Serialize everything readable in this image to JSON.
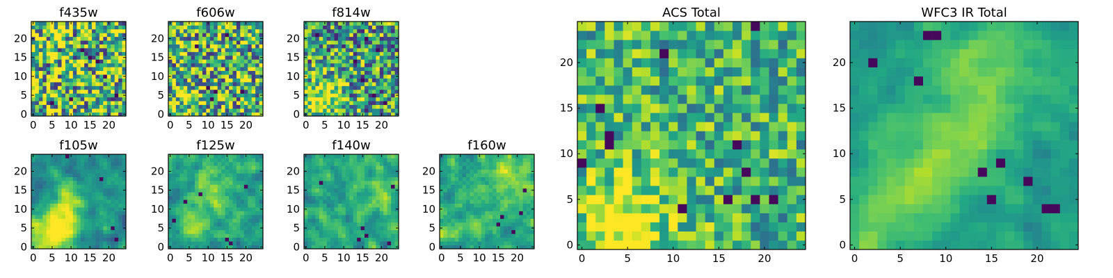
{
  "chart_data": [
    {
      "type": "heatmap",
      "title": "f435w",
      "colormap": "viridis",
      "grid_size": [
        25,
        25
      ],
      "xlim": [
        -0.5,
        24.5
      ],
      "ylim": [
        -0.5,
        24.5
      ],
      "xticks": [
        0,
        5,
        10,
        15,
        20
      ],
      "yticks": [
        0,
        5,
        10,
        15,
        20
      ],
      "xtick_labels": [
        "0",
        "5",
        "10",
        "15",
        "20"
      ],
      "ytick_labels": [
        "0",
        "5",
        "10",
        "15",
        "20"
      ],
      "seed": 11,
      "noise": 0.55,
      "smooth": 0,
      "base": 0.68,
      "features": [
        {
          "x": 4,
          "y": 3,
          "amp": 0.05,
          "r": 4
        }
      ],
      "dark_spots": [
        [
          15,
          15
        ],
        [
          10,
          4
        ],
        [
          19,
          10
        ],
        [
          5,
          3
        ],
        [
          22,
          5
        ],
        [
          13,
          17
        ],
        [
          17,
          14
        ]
      ]
    },
    {
      "type": "heatmap",
      "title": "f606w",
      "colormap": "viridis",
      "grid_size": [
        25,
        25
      ],
      "xlim": [
        -0.5,
        24.5
      ],
      "ylim": [
        -0.5,
        24.5
      ],
      "xticks": [
        0,
        5,
        10,
        15,
        20
      ],
      "yticks": [
        0,
        5,
        10,
        15,
        20
      ],
      "xtick_labels": [
        "0",
        "5",
        "10",
        "15",
        "20"
      ],
      "ytick_labels": [
        "0",
        "5",
        "10",
        "15",
        "20"
      ],
      "seed": 23,
      "noise": 0.5,
      "smooth": 0,
      "base": 0.64,
      "features": [
        {
          "x": 3,
          "y": 3,
          "amp": 0.18,
          "r": 3.5
        }
      ],
      "dark_spots": [
        [
          12,
          6
        ],
        [
          11,
          4
        ],
        [
          10,
          7
        ],
        [
          19,
          6
        ],
        [
          7,
          18
        ],
        [
          15,
          21
        ]
      ]
    },
    {
      "type": "heatmap",
      "title": "f814w",
      "colormap": "viridis",
      "grid_size": [
        25,
        25
      ],
      "xlim": [
        -0.5,
        24.5
      ],
      "ylim": [
        -0.5,
        24.5
      ],
      "xticks": [
        0,
        5,
        10,
        15,
        20
      ],
      "yticks": [
        0,
        5,
        10,
        15,
        20
      ],
      "xtick_labels": [
        "0",
        "5",
        "10",
        "15",
        "20"
      ],
      "ytick_labels": [
        "0",
        "5",
        "10",
        "15",
        "20"
      ],
      "seed": 37,
      "noise": 0.45,
      "smooth": 0,
      "base": 0.55,
      "features": [
        {
          "x": 4,
          "y": 3,
          "amp": 0.4,
          "r": 3.5
        },
        {
          "x": 6,
          "y": 6,
          "amp": 0.25,
          "r": 3
        }
      ],
      "dark_spots": [
        [
          15,
          9
        ],
        [
          18,
          5
        ],
        [
          21,
          3
        ],
        [
          13,
          14
        ],
        [
          16,
          20
        ],
        [
          3,
          21
        ],
        [
          19,
          17
        ]
      ]
    },
    {
      "type": "heatmap",
      "title": "f105w",
      "colormap": "viridis",
      "grid_size": [
        25,
        25
      ],
      "xlim": [
        -0.5,
        24.5
      ],
      "ylim": [
        -0.5,
        24.5
      ],
      "xticks": [
        0,
        5,
        10,
        15,
        20
      ],
      "yticks": [
        0,
        5,
        10,
        15,
        20
      ],
      "xtick_labels": [
        "0",
        "5",
        "10",
        "15",
        "20"
      ],
      "ytick_labels": [
        "0",
        "5",
        "10",
        "15",
        "20"
      ],
      "seed": 51,
      "noise": 0.35,
      "smooth": 1,
      "base": 0.5,
      "features": [
        {
          "x": 5,
          "y": 3,
          "amp": 0.42,
          "r": 4
        },
        {
          "x": 8,
          "y": 8,
          "amp": 0.32,
          "r": 4
        },
        {
          "x": 10,
          "y": 13,
          "amp": 0.22,
          "r": 3
        }
      ],
      "dark_spots": [
        [
          9,
          24
        ],
        [
          21,
          5
        ],
        [
          22,
          2
        ],
        [
          18,
          18
        ]
      ]
    },
    {
      "type": "heatmap",
      "title": "f125w",
      "colormap": "viridis",
      "grid_size": [
        25,
        25
      ],
      "xlim": [
        -0.5,
        24.5
      ],
      "ylim": [
        -0.5,
        24.5
      ],
      "xticks": [
        0,
        5,
        10,
        15,
        20
      ],
      "yticks": [
        0,
        5,
        10,
        15,
        20
      ],
      "xtick_labels": [
        "0",
        "5",
        "10",
        "15",
        "20"
      ],
      "ytick_labels": [
        "0",
        "5",
        "10",
        "15",
        "20"
      ],
      "seed": 67,
      "noise": 0.4,
      "smooth": 1,
      "base": 0.58,
      "features": [
        {
          "x": 10,
          "y": 15,
          "amp": 0.25,
          "r": 4
        },
        {
          "x": 7,
          "y": 5,
          "amp": 0.15,
          "r": 3
        }
      ],
      "dark_spots": [
        [
          16,
          1
        ],
        [
          15,
          2
        ],
        [
          8,
          14
        ],
        [
          4,
          12
        ],
        [
          20,
          16
        ],
        [
          1,
          7
        ]
      ]
    },
    {
      "type": "heatmap",
      "title": "f140w",
      "colormap": "viridis",
      "grid_size": [
        25,
        25
      ],
      "xlim": [
        -0.5,
        24.5
      ],
      "ylim": [
        -0.5,
        24.5
      ],
      "xticks": [
        0,
        5,
        10,
        15,
        20
      ],
      "yticks": [
        0,
        5,
        10,
        15,
        20
      ],
      "xtick_labels": [
        "0",
        "5",
        "10",
        "15",
        "20"
      ],
      "ytick_labels": [
        "0",
        "5",
        "10",
        "15",
        "20"
      ],
      "seed": 79,
      "noise": 0.42,
      "smooth": 1,
      "base": 0.6,
      "features": [
        {
          "x": 18,
          "y": 14,
          "amp": 0.2,
          "r": 3
        },
        {
          "x": 6,
          "y": 4,
          "amp": 0.12,
          "r": 3
        }
      ],
      "dark_spots": [
        [
          15,
          5
        ],
        [
          16,
          3
        ],
        [
          14,
          2
        ],
        [
          22,
          1
        ],
        [
          4,
          17
        ],
        [
          23,
          16
        ]
      ]
    },
    {
      "type": "heatmap",
      "title": "f160w",
      "colormap": "viridis",
      "grid_size": [
        25,
        25
      ],
      "xlim": [
        -0.5,
        24.5
      ],
      "ylim": [
        -0.5,
        24.5
      ],
      "xticks": [
        0,
        5,
        10,
        15,
        20
      ],
      "yticks": [
        0,
        5,
        10,
        15,
        20
      ],
      "xtick_labels": [
        "0",
        "5",
        "10",
        "15",
        "20"
      ],
      "ytick_labels": [
        "0",
        "5",
        "10",
        "15",
        "20"
      ],
      "seed": 97,
      "noise": 0.4,
      "smooth": 1,
      "base": 0.6,
      "features": [
        {
          "x": 17,
          "y": 20,
          "amp": 0.25,
          "r": 4
        },
        {
          "x": 2,
          "y": 2,
          "amp": 0.18,
          "r": 3
        }
      ],
      "dark_spots": [
        [
          16,
          8
        ],
        [
          15,
          6
        ],
        [
          21,
          9
        ],
        [
          19,
          4
        ],
        [
          22,
          15
        ]
      ]
    },
    {
      "type": "heatmap",
      "title": "ACS Total",
      "colormap": "viridis",
      "grid_size": [
        25,
        25
      ],
      "xlim": [
        -0.5,
        24.5
      ],
      "ylim": [
        -0.5,
        24.5
      ],
      "xticks": [
        0,
        5,
        10,
        15,
        20
      ],
      "yticks": [
        0,
        5,
        10,
        15,
        20
      ],
      "xtick_labels": [
        "0",
        "5",
        "10",
        "15",
        "20"
      ],
      "ytick_labels": [
        "0",
        "5",
        "10",
        "15",
        "20"
      ],
      "seed": 131,
      "noise": 0.3,
      "smooth": 0,
      "base": 0.65,
      "features": [
        {
          "x": 5,
          "y": 3,
          "amp": 0.3,
          "r": 4
        },
        {
          "x": 4,
          "y": 1,
          "amp": 0.2,
          "r": 2
        }
      ],
      "dark_spots": [
        [
          19,
          24
        ],
        [
          9,
          21
        ],
        [
          3,
          12
        ],
        [
          17,
          11
        ],
        [
          0,
          9
        ],
        [
          18,
          8
        ],
        [
          16,
          5
        ],
        [
          11,
          4
        ],
        [
          19,
          5
        ],
        [
          21,
          5
        ],
        [
          2,
          15
        ],
        [
          3,
          11
        ]
      ]
    },
    {
      "type": "heatmap",
      "title": "WFC3 IR Total",
      "colormap": "viridis",
      "grid_size": [
        25,
        25
      ],
      "xlim": [
        -0.5,
        24.5
      ],
      "ylim": [
        -0.5,
        24.5
      ],
      "xticks": [
        0,
        5,
        10,
        15,
        20
      ],
      "yticks": [
        0,
        5,
        10,
        15,
        20
      ],
      "xtick_labels": [
        "0",
        "5",
        "10",
        "15",
        "20"
      ],
      "ytick_labels": [
        "0",
        "5",
        "10",
        "15",
        "20"
      ],
      "seed": 149,
      "noise": 0.22,
      "smooth": 1,
      "base": 0.55,
      "features": [
        {
          "x": 6,
          "y": 6,
          "amp": 0.3,
          "r": 4
        },
        {
          "x": 12,
          "y": 12,
          "amp": 0.25,
          "r": 3
        },
        {
          "x": 15,
          "y": 20,
          "amp": 0.22,
          "r": 4
        },
        {
          "x": 1,
          "y": 0,
          "amp": 0.2,
          "r": 2
        }
      ],
      "dark_spots": [
        [
          8,
          23
        ],
        [
          9,
          23
        ],
        [
          16,
          9
        ],
        [
          14,
          8
        ],
        [
          15,
          5
        ],
        [
          21,
          4
        ],
        [
          22,
          4
        ],
        [
          19,
          7
        ],
        [
          2,
          20
        ],
        [
          7,
          18
        ]
      ]
    }
  ]
}
